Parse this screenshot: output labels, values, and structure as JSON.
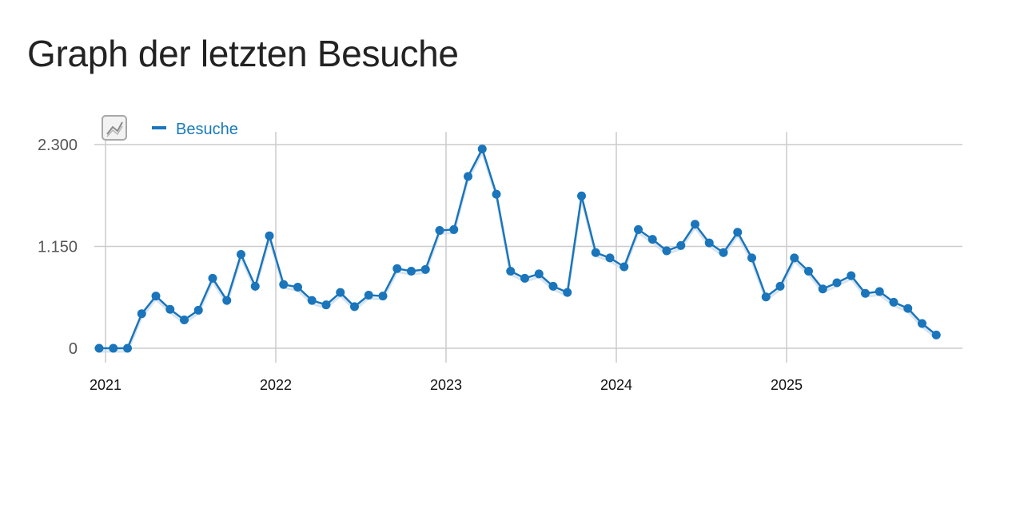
{
  "page_title": "Graph der letzten Besuche",
  "legend": {
    "label": "Besuche",
    "icon": "line-chart-icon"
  },
  "colors": {
    "series": "#1a75bb",
    "grid": "#cccccc",
    "legend_text": "#1a7ab8"
  },
  "chart_data": {
    "type": "line",
    "title": "",
    "xlabel": "",
    "ylabel": "",
    "y_ticks": [
      "0",
      "1.150",
      "2.300"
    ],
    "ylim": [
      0,
      2300
    ],
    "x_ticks": [
      "2021",
      "2022",
      "2023",
      "2024",
      "2025"
    ],
    "x_tick_months": [
      1,
      13,
      25,
      37,
      49
    ],
    "grid": true,
    "legend_position": "top-left",
    "series": [
      {
        "name": "Besuche",
        "x": [
          "2021-01",
          "2021-02",
          "2021-03",
          "2021-04",
          "2021-05",
          "2021-06",
          "2021-07",
          "2021-08",
          "2021-09",
          "2021-10",
          "2021-11",
          "2021-12",
          "2022-01",
          "2022-02",
          "2022-03",
          "2022-04",
          "2022-05",
          "2022-06",
          "2022-07",
          "2022-08",
          "2022-09",
          "2022-10",
          "2022-11",
          "2022-12",
          "2023-01",
          "2023-02",
          "2023-03",
          "2023-04",
          "2023-05",
          "2023-06",
          "2023-07",
          "2023-08",
          "2023-09",
          "2023-10",
          "2023-11",
          "2023-12",
          "2024-01",
          "2024-02",
          "2024-03",
          "2024-04",
          "2024-05",
          "2024-06",
          "2024-07",
          "2024-08",
          "2024-09",
          "2024-10",
          "2024-11",
          "2024-12",
          "2025-01",
          "2025-02",
          "2025-03",
          "2025-04",
          "2025-05",
          "2025-06",
          "2025-07",
          "2025-08",
          "2025-09",
          "2025-10",
          "2025-11",
          "2025-12"
        ],
        "values": [
          0,
          0,
          0,
          390,
          590,
          440,
          320,
          430,
          790,
          540,
          1060,
          700,
          1270,
          720,
          690,
          540,
          490,
          630,
          470,
          600,
          590,
          900,
          870,
          890,
          1330,
          1340,
          1940,
          2250,
          1740,
          870,
          790,
          840,
          700,
          630,
          1720,
          1080,
          1020,
          920,
          1340,
          1230,
          1100,
          1160,
          1400,
          1190,
          1080,
          1310,
          1020,
          580,
          700,
          1020,
          870,
          670,
          740,
          820,
          620,
          640,
          520,
          450,
          280,
          150
        ]
      }
    ]
  }
}
